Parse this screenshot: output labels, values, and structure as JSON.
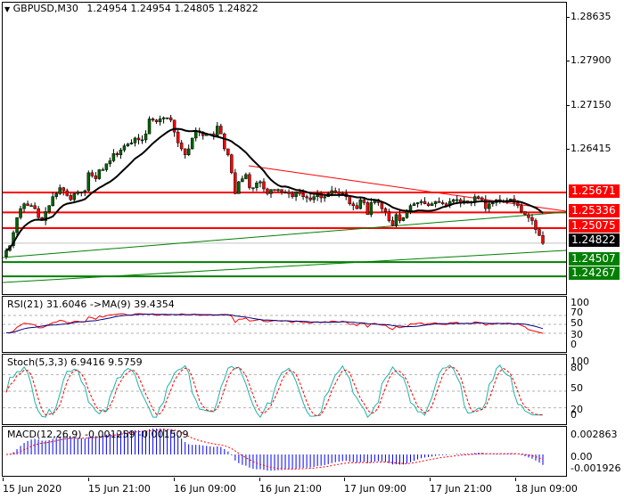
{
  "header": {
    "menu_glyph": "▼",
    "symbol": "GBPUSD,M30",
    "ohlc": "1.24954 1.24954 1.24805 1.24822"
  },
  "colors": {
    "resistance": "#ff0000",
    "support": "#008000",
    "current": "#000000",
    "bull_candle": "#006400",
    "bear_candle": "#ff0000",
    "ma": "#000000",
    "rsi": "#ff0000",
    "rsi_ma": "#000080",
    "stoch_main": "#20b2aa",
    "stoch_signal": "#ff0000",
    "macd_hist": "#0000ff",
    "macd_signal": "#ff0000"
  },
  "price_axis": {
    "labels": [
      "1.28635",
      "1.27900",
      "1.27150",
      "1.26415"
    ],
    "levels": [
      {
        "value": "1.25671",
        "kind": "resistance"
      },
      {
        "value": "1.25336",
        "kind": "resistance"
      },
      {
        "value": "1.25075",
        "kind": "resistance"
      },
      {
        "value": "1.24822",
        "kind": "current"
      },
      {
        "value": "1.24507",
        "kind": "support"
      },
      {
        "value": "1.24267",
        "kind": "support"
      }
    ]
  },
  "rsi": {
    "title": "RSI(21) 31.6046  ->MA(9) 39.4354",
    "axis": [
      "100",
      "70",
      "50",
      "30",
      "0"
    ]
  },
  "stoch": {
    "title": "Stoch(5,3,3) 6.9416 9.5759",
    "axis": [
      "100",
      "80",
      "50",
      "20",
      "0"
    ]
  },
  "macd": {
    "title": "MACD(12,26,9) -0.001259 -0.001509",
    "axis": [
      "0.002863",
      "0.00",
      "-0.001926"
    ]
  },
  "time_axis": {
    "labels": [
      "15 Jun 2020",
      "15 Jun 21:00",
      "16 Jun 09:00",
      "16 Jun 21:00",
      "17 Jun 09:00",
      "17 Jun 21:00",
      "18 Jun 09:00"
    ]
  },
  "chart_data": {
    "type": "candlestick",
    "title": "GBPUSD,M30",
    "timeframe": "M30",
    "last_bar": {
      "open": 1.24954,
      "high": 1.24954,
      "low": 1.24805,
      "close": 1.24822
    },
    "y_range": [
      1.2415,
      1.2905
    ],
    "x_labels": [
      "15 Jun 2020",
      "15 Jun 21:00",
      "16 Jun 09:00",
      "16 Jun 21:00",
      "17 Jun 09:00",
      "17 Jun 21:00",
      "18 Jun 09:00"
    ],
    "close_series": [
      1.247,
      1.2478,
      1.25,
      1.2525,
      1.254,
      1.2548,
      1.2545,
      1.2545,
      1.254,
      1.2525,
      1.252,
      1.2535,
      1.2545,
      1.256,
      1.2565,
      1.2575,
      1.257,
      1.2562,
      1.2555,
      1.2565,
      1.2568,
      1.2568,
      1.257,
      1.26,
      1.2595,
      1.259,
      1.2605,
      1.2605,
      1.2615,
      1.262,
      1.2632,
      1.263,
      1.2638,
      1.2645,
      1.2648,
      1.265,
      1.2658,
      1.2655,
      1.2655,
      1.2665,
      1.269,
      1.2688,
      1.2685,
      1.269,
      1.2692,
      1.2692,
      1.2688,
      1.2668,
      1.265,
      1.264,
      1.263,
      1.264,
      1.2658,
      1.267,
      1.2668,
      1.2662,
      1.2665,
      1.2665,
      1.2662,
      1.2678,
      1.2665,
      1.264,
      1.263,
      1.26,
      1.2565,
      1.2585,
      1.259,
      1.2597,
      1.2575,
      1.2575,
      1.2583,
      1.2585,
      1.2573,
      1.2565,
      1.2572,
      1.257,
      1.2572,
      1.2568,
      1.2568,
      1.2565,
      1.256,
      1.2568,
      1.2565,
      1.256,
      1.2558,
      1.2555,
      1.256,
      1.2565,
      1.2558,
      1.256,
      1.2565,
      1.257,
      1.2568,
      1.2565,
      1.2565,
      1.256,
      1.2548,
      1.2545,
      1.254,
      1.2555,
      1.255,
      1.253,
      1.255,
      1.2555,
      1.255,
      1.254,
      1.2535,
      1.252,
      1.2512,
      1.253,
      1.252,
      1.2525,
      1.2535,
      1.2545,
      1.2548,
      1.255,
      1.2552,
      1.2548,
      1.2545,
      1.2548,
      1.2552,
      1.255,
      1.2548,
      1.2545,
      1.2552,
      1.2555,
      1.2555,
      1.255,
      1.2553,
      1.255,
      1.2552,
      1.256,
      1.2558,
      1.2555,
      1.254,
      1.2548,
      1.255,
      1.2555,
      1.2553,
      1.2552,
      1.2554,
      1.2556,
      1.255,
      1.2545,
      1.2535,
      1.253,
      1.2525,
      1.252,
      1.2505,
      1.2495,
      1.2482
    ],
    "moving_average": "black smoothed line",
    "horizontal_levels": {
      "resistance": [
        1.25671,
        1.25336,
        1.25075
      ],
      "support": [
        1.24507,
        1.24267
      ],
      "current": 1.24822
    },
    "trendlines": [
      {
        "color": "red",
        "from": [
          1.2596,
          "16 Jun 19:00"
        ],
        "to": [
          1.2541,
          "18 Jun 11:30"
        ]
      },
      {
        "color": "green",
        "from": [
          1.245,
          "15 Jun 2020"
        ],
        "to": [
          1.2535,
          "18 Jun 11:30"
        ]
      },
      {
        "color": "green",
        "from": [
          1.2418,
          "15 Jun 2020"
        ],
        "to": [
          1.2467,
          "18 Jun 11:30"
        ]
      }
    ],
    "indicators": [
      {
        "name": "RSI(21)",
        "value": 31.6046,
        "ma9": 39.4354,
        "levels": [
          30,
          50,
          70
        ],
        "range": [
          0,
          100
        ]
      },
      {
        "name": "Stoch(5,3,3)",
        "main": 6.9416,
        "signal": 9.5759,
        "levels": [
          20,
          50,
          80
        ],
        "range": [
          0,
          100
        ]
      },
      {
        "name": "MACD(12,26,9)",
        "main": -0.001259,
        "signal": -0.001509,
        "range": [
          -0.001926,
          0.002863
        ]
      }
    ]
  }
}
